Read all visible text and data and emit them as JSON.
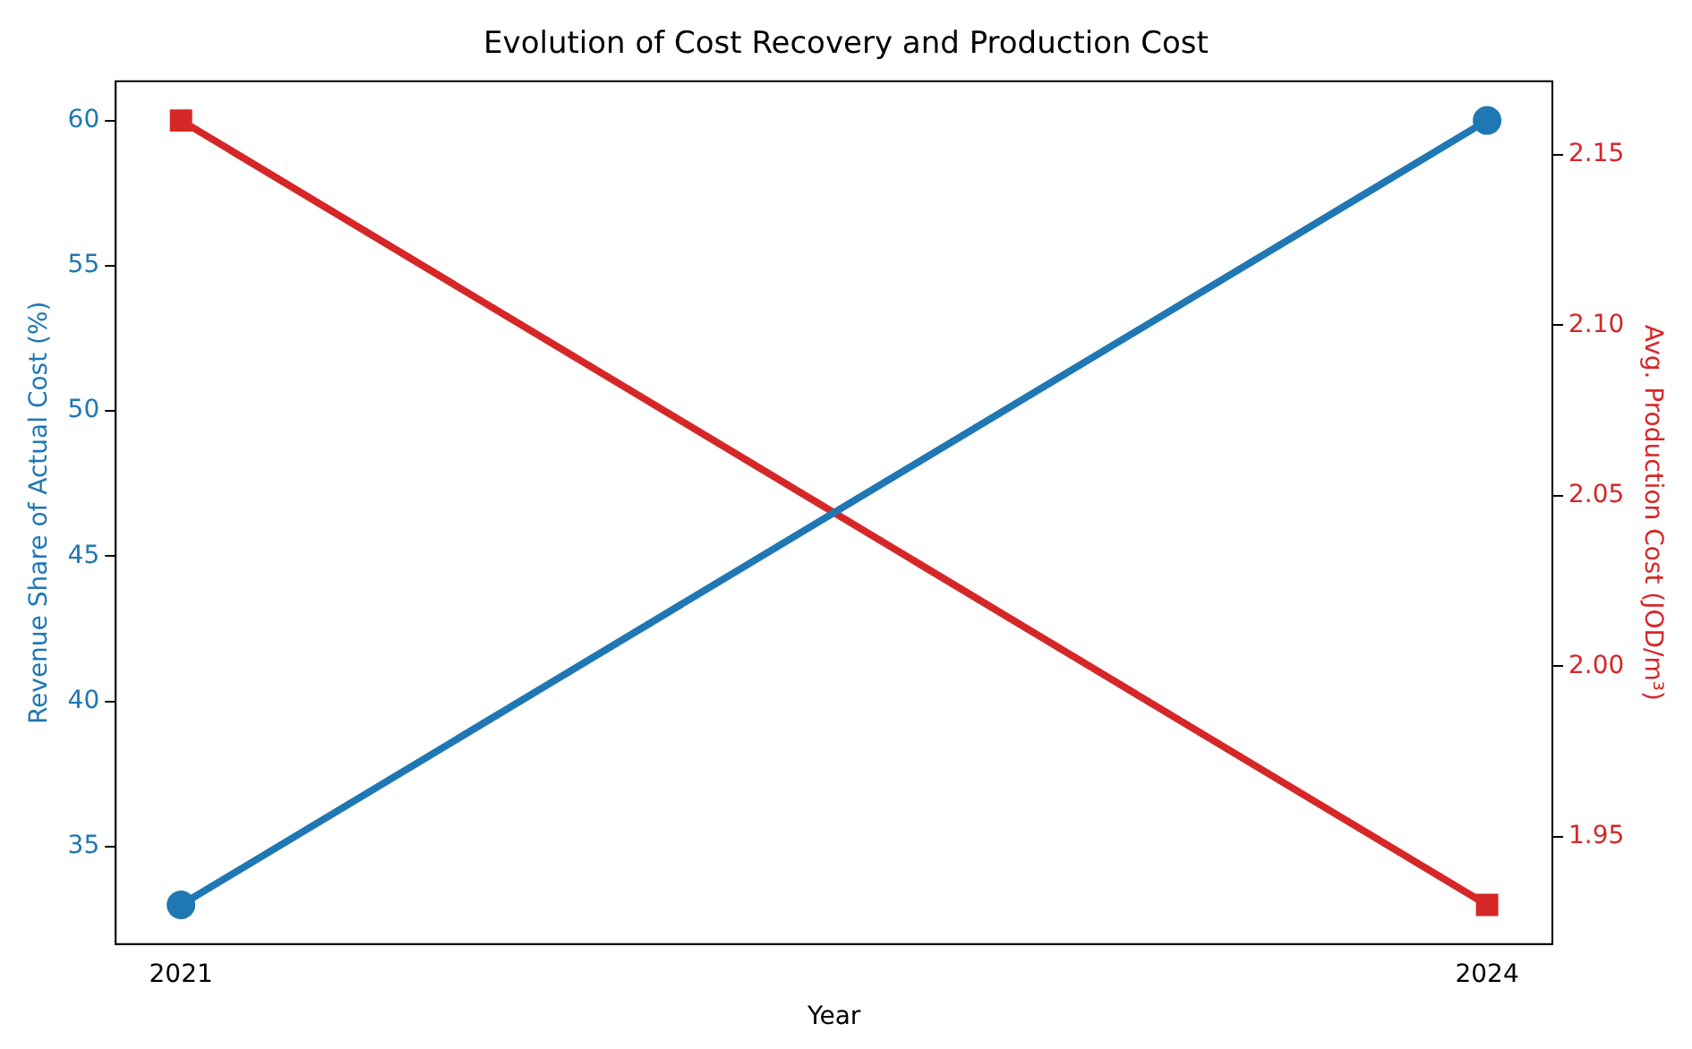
{
  "chart_data": {
    "type": "line",
    "title": "Evolution of Cost Recovery and Production Cost",
    "xlabel": "Year",
    "ylabel": "Revenue Share of Actual Cost (%)",
    "y2label": "Avg. Production Cost (JOD/m³)",
    "x": [
      2021,
      2024
    ],
    "xlim": [
      2020.85,
      2024.15
    ],
    "xticks": [
      2021,
      2024
    ],
    "ylim": [
      31.65,
      61.35
    ],
    "yticks": [
      35,
      40,
      45,
      50,
      55,
      60
    ],
    "y2lim": [
      1.9185,
      2.1715
    ],
    "y2ticks": [
      1.95,
      {
        "value": 2.0,
        "label": "2.00"
      },
      2.05,
      {
        "value": 2.1,
        "label": "2.10"
      },
      2.15
    ],
    "series": [
      {
        "color": "#1f77b4",
        "values": [
          33,
          60
        ],
        "marker": "circle"
      },
      {
        "color": "#d62728",
        "values": [
          2.16,
          1.93
        ],
        "marker": "square",
        "axis": "y2"
      }
    ],
    "grid": false,
    "legend": false,
    "line_style": "solid"
  }
}
